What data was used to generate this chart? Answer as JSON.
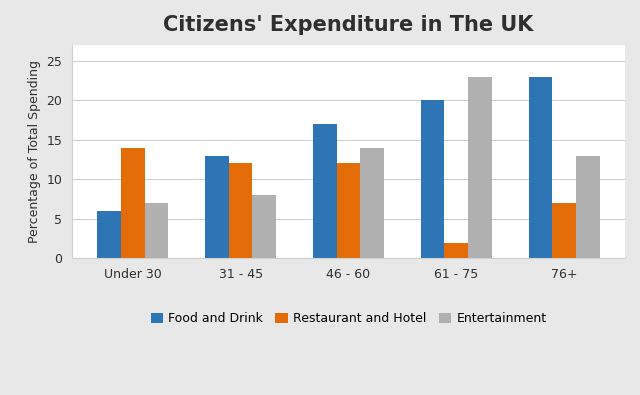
{
  "title": "Citizens' Expenditure in The UK",
  "ylabel": "Percentage of Total Spending",
  "categories": [
    "Under 30",
    "31 - 45",
    "46 - 60",
    "61 - 75",
    "76+"
  ],
  "series": [
    {
      "label": "Food and Drink",
      "color": "#2E75B6",
      "values": [
        6,
        13,
        17,
        20,
        23
      ]
    },
    {
      "label": "Restaurant and Hotel",
      "color": "#E36C09",
      "values": [
        14,
        12,
        12,
        2,
        7
      ]
    },
    {
      "label": "Entertainment",
      "color": "#B0B0B0",
      "values": [
        7,
        8,
        14,
        23,
        13
      ]
    }
  ],
  "ylim": [
    0,
    27
  ],
  "yticks": [
    0,
    5,
    10,
    15,
    20,
    25
  ],
  "bar_width": 0.22,
  "outer_bg_color": "#E8E8E8",
  "inner_bg_color": "#FFFFFF",
  "grid_color": "#D0D0D0",
  "title_fontsize": 15,
  "axis_label_fontsize": 9,
  "tick_fontsize": 9,
  "legend_fontsize": 9,
  "title_color": "#2F2F2F"
}
